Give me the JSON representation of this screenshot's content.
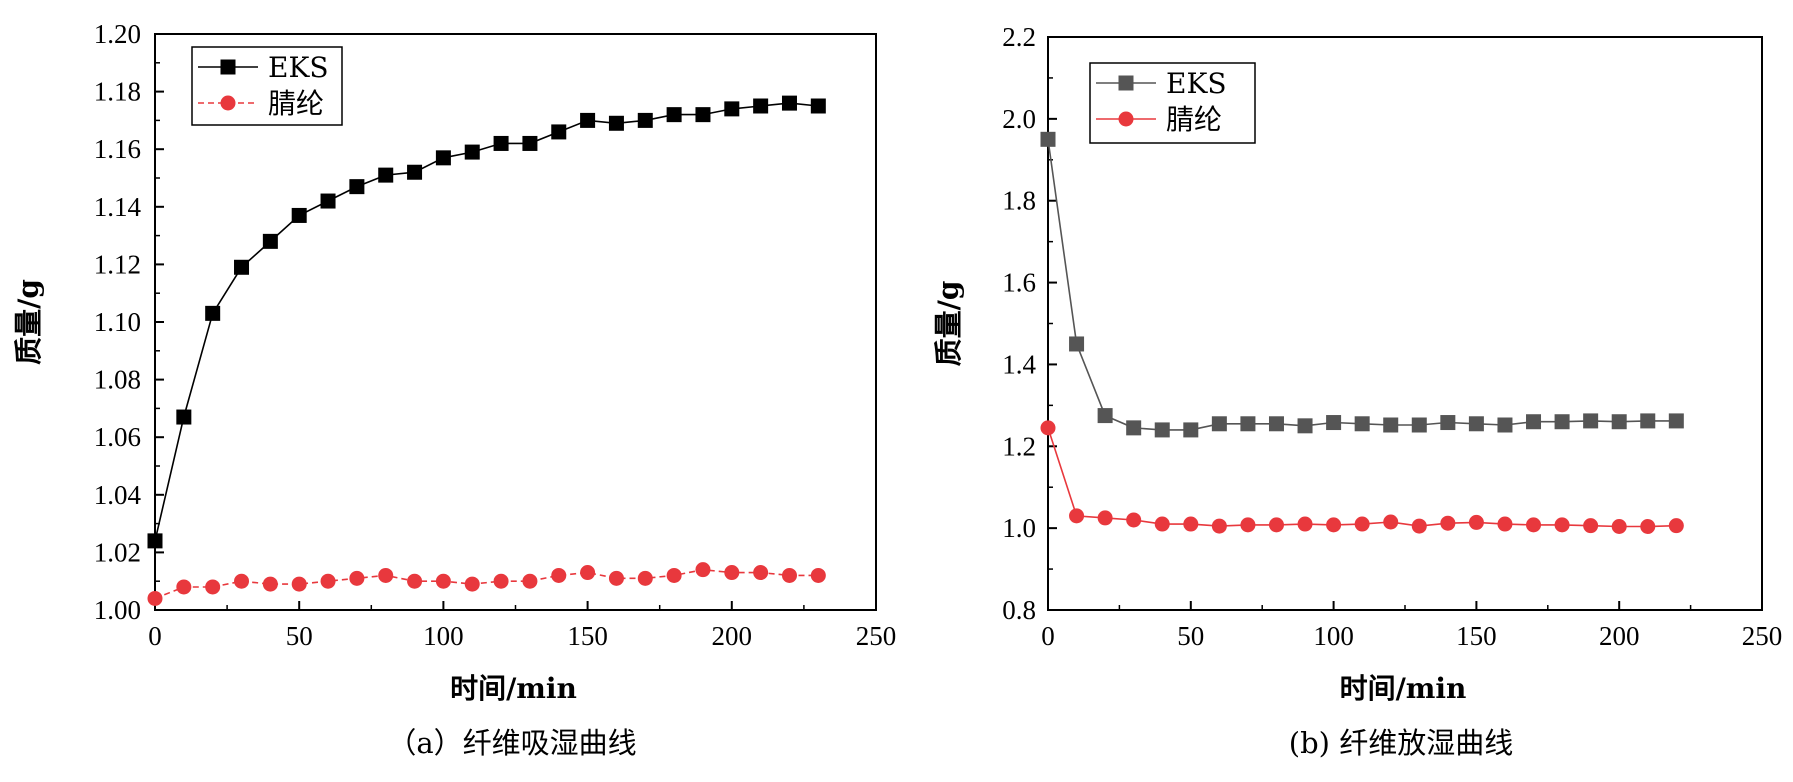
{
  "chart_data": [
    {
      "type": "line",
      "caption": "（a）纤维吸湿曲线",
      "xlabel": "时间/min",
      "ylabel": "质量/g",
      "xlim": [
        0,
        250
      ],
      "ylim": [
        1.0,
        1.2
      ],
      "xticks": [
        0,
        50,
        100,
        150,
        200,
        250
      ],
      "yticks": [
        1.0,
        1.02,
        1.04,
        1.06,
        1.08,
        1.1,
        1.12,
        1.14,
        1.16,
        1.18,
        1.2
      ],
      "ytick_labels": [
        "1.00",
        "1.02",
        "1.04",
        "1.06",
        "1.08",
        "1.10",
        "1.12",
        "1.14",
        "1.16",
        "1.18",
        "1.20"
      ],
      "grid": false,
      "legend_position": "top-left",
      "series": [
        {
          "name": "EKS",
          "marker": "square",
          "color": "#000000",
          "line_style": "solid",
          "x": [
            0,
            10,
            20,
            30,
            40,
            50,
            60,
            70,
            80,
            90,
            100,
            110,
            120,
            130,
            140,
            150,
            160,
            170,
            180,
            190,
            200,
            210,
            220,
            230
          ],
          "y": [
            1.024,
            1.067,
            1.103,
            1.119,
            1.128,
            1.137,
            1.142,
            1.147,
            1.151,
            1.152,
            1.157,
            1.159,
            1.162,
            1.162,
            1.166,
            1.17,
            1.169,
            1.17,
            1.172,
            1.172,
            1.174,
            1.175,
            1.176,
            1.175
          ]
        },
        {
          "name": "腈纶",
          "marker": "circle",
          "color": "#e8383d",
          "line_style": "dashed",
          "x": [
            0,
            10,
            20,
            30,
            40,
            50,
            60,
            70,
            80,
            90,
            100,
            110,
            120,
            130,
            140,
            150,
            160,
            170,
            180,
            190,
            200,
            210,
            220,
            230
          ],
          "y": [
            1.004,
            1.008,
            1.008,
            1.01,
            1.009,
            1.009,
            1.01,
            1.011,
            1.012,
            1.01,
            1.01,
            1.009,
            1.01,
            1.01,
            1.012,
            1.013,
            1.011,
            1.011,
            1.012,
            1.014,
            1.013,
            1.013,
            1.012,
            1.012
          ]
        }
      ]
    },
    {
      "type": "line",
      "caption": "(b) 纤维放湿曲线",
      "xlabel": "时间/min",
      "ylabel": "质量/g",
      "xlim": [
        0,
        250
      ],
      "ylim": [
        0.8,
        2.2
      ],
      "xticks": [
        0,
        50,
        100,
        150,
        200,
        250
      ],
      "yticks": [
        0.8,
        1.0,
        1.2,
        1.4,
        1.6,
        1.8,
        2.0,
        2.2
      ],
      "ytick_labels": [
        "0.8",
        "1.0",
        "1.2",
        "1.4",
        "1.6",
        "1.8",
        "2.0",
        "2.2"
      ],
      "grid": false,
      "legend_position": "top-left",
      "series": [
        {
          "name": "EKS",
          "marker": "square",
          "color": "#555555",
          "line_style": "solid",
          "x": [
            0,
            10,
            20,
            30,
            40,
            50,
            60,
            70,
            80,
            90,
            100,
            110,
            120,
            130,
            140,
            150,
            160,
            170,
            180,
            190,
            200,
            210,
            220
          ],
          "y": [
            1.95,
            1.45,
            1.275,
            1.245,
            1.24,
            1.24,
            1.255,
            1.255,
            1.255,
            1.25,
            1.258,
            1.255,
            1.252,
            1.252,
            1.258,
            1.255,
            1.252,
            1.26,
            1.26,
            1.262,
            1.26,
            1.262,
            1.262
          ]
        },
        {
          "name": "腈纶",
          "marker": "circle",
          "color": "#e8383d",
          "line_style": "solid",
          "x": [
            0,
            10,
            20,
            30,
            40,
            50,
            60,
            70,
            80,
            90,
            100,
            110,
            120,
            130,
            140,
            150,
            160,
            170,
            180,
            190,
            200,
            210,
            220
          ],
          "y": [
            1.245,
            1.03,
            1.025,
            1.02,
            1.01,
            1.01,
            1.005,
            1.008,
            1.008,
            1.01,
            1.008,
            1.01,
            1.015,
            1.005,
            1.012,
            1.014,
            1.01,
            1.008,
            1.008,
            1.006,
            1.004,
            1.004,
            1.006
          ]
        }
      ]
    }
  ]
}
